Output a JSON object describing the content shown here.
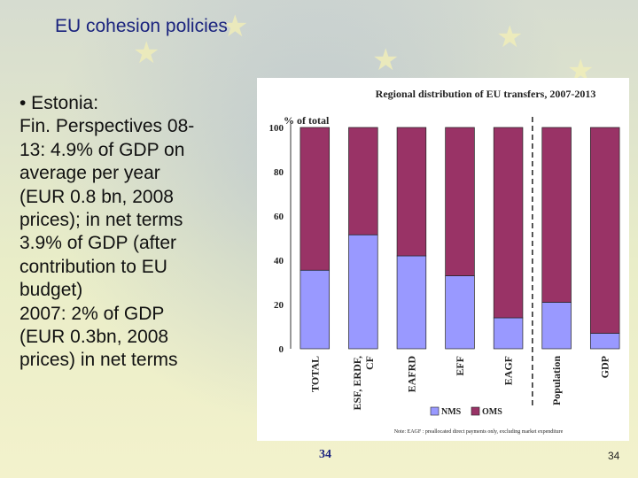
{
  "slide": {
    "title": "EU cohesion policies",
    "bullet_lines": [
      "• Estonia:",
      "Fin. Perspectives 08-",
      "13: 4.9% of GDP on",
      "average per year",
      "(EUR 0.8 bn, 2008",
      "prices); in net terms",
      "3.9% of GDP (after",
      "contribution to EU",
      "budget)",
      "2007: 2% of GDP",
      "(EUR 0.3bn, 2008",
      "prices) in net terms"
    ],
    "page_number_chart": "34",
    "page_number_slide": "34"
  },
  "chart_data": {
    "type": "bar",
    "stacked": true,
    "title": "Regional distribution of EU transfers, 2007-2013",
    "ylabel": "% of total",
    "ylim": [
      0,
      100
    ],
    "yticks": [
      0,
      20,
      40,
      60,
      80,
      100
    ],
    "categories": [
      "TOTAL",
      "ESF, ERDF, CF",
      "EAFRD",
      "EFF",
      "EAGF",
      "Population",
      "GDP"
    ],
    "series": [
      {
        "name": "NMS",
        "color": "#9999ff",
        "values": [
          35.5,
          51.5,
          42,
          33,
          14,
          21,
          7
        ]
      },
      {
        "name": "OMS",
        "color": "#993366",
        "values": [
          64.5,
          48.5,
          58,
          67,
          86,
          79,
          93
        ]
      }
    ],
    "separator_after_category": "EAGF",
    "legend": [
      "NMS",
      "OMS"
    ],
    "note": "Note: EAGF : preallocated direct payments only, excluding market expenditure"
  }
}
